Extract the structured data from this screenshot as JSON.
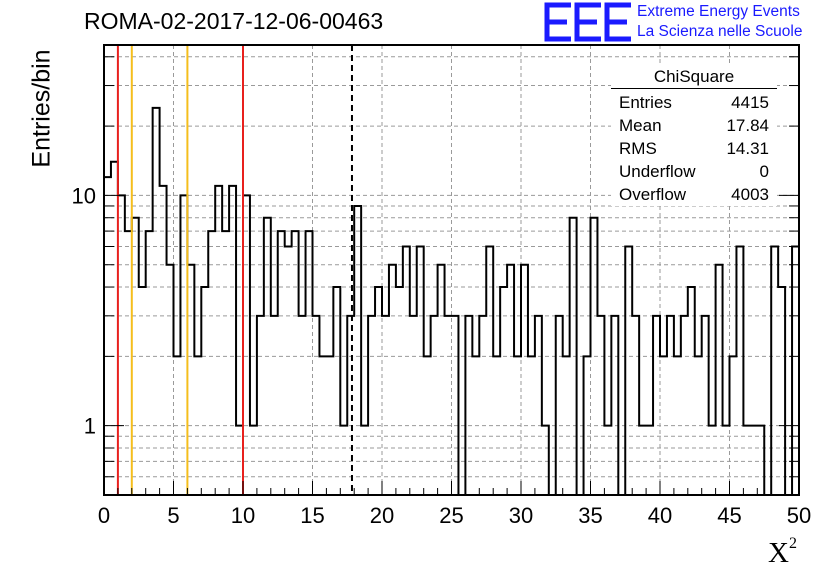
{
  "title": "ROMA-02-2017-12-06-00463",
  "logo": {
    "text": "EEE",
    "line1": "Extreme Energy Events",
    "line2": "La Scienza nelle Scuole"
  },
  "stats": {
    "title": "ChiSquare",
    "rows": [
      {
        "label": "Entries",
        "value": "4415"
      },
      {
        "label": "Mean",
        "value": "17.84"
      },
      {
        "label": "RMS",
        "value": "14.31"
      },
      {
        "label": "Underflow",
        "value": "0"
      },
      {
        "label": "Overflow",
        "value": "4003"
      }
    ]
  },
  "colors": {
    "red_line": "#e8201d",
    "yellow_line": "#f5be1c",
    "logo_blue": "#1a1aff"
  },
  "chart_data": {
    "type": "bar",
    "title": "ROMA-02-2017-12-06-00463",
    "xlabel": "X²",
    "ylabel": "Entries/bin",
    "xlim": [
      0,
      50
    ],
    "ylim": [
      0.5,
      45
    ],
    "yscale": "log",
    "grid": true,
    "bin_width": 0.5,
    "x_ticks": [
      "0",
      "5",
      "10",
      "15",
      "20",
      "25",
      "30",
      "35",
      "40",
      "45",
      "50"
    ],
    "y_ticks": [
      "1",
      "10"
    ],
    "values": [
      12,
      14,
      10,
      7,
      8,
      4,
      7,
      24,
      11,
      5,
      2,
      10,
      5,
      2,
      4,
      7,
      11,
      7,
      11,
      1,
      10,
      1,
      3,
      8,
      3,
      7,
      6,
      7,
      3,
      7,
      3,
      2,
      2,
      4,
      1,
      3,
      9,
      1,
      3,
      4,
      3,
      5,
      4,
      6,
      3,
      6,
      2,
      3,
      5,
      3,
      3,
      0.3,
      3,
      2,
      3,
      6,
      2,
      4,
      5,
      2,
      5,
      2,
      3,
      1,
      0.3,
      3,
      2,
      8,
      0.3,
      2,
      8,
      3,
      1,
      3,
      0.3,
      6,
      3,
      1,
      1,
      3,
      2,
      3,
      2,
      3,
      4,
      2,
      3,
      1,
      5,
      1,
      2,
      6,
      1,
      1,
      1,
      0.3,
      6,
      4,
      0.3,
      6
    ],
    "markers": [
      {
        "x": 1,
        "color": "red",
        "style": "solid"
      },
      {
        "x": 2,
        "color": "yellow",
        "style": "solid"
      },
      {
        "x": 6,
        "color": "yellow",
        "style": "solid"
      },
      {
        "x": 10,
        "color": "red",
        "style": "solid"
      },
      {
        "x": 17.84,
        "color": "black",
        "style": "dashed"
      }
    ]
  }
}
